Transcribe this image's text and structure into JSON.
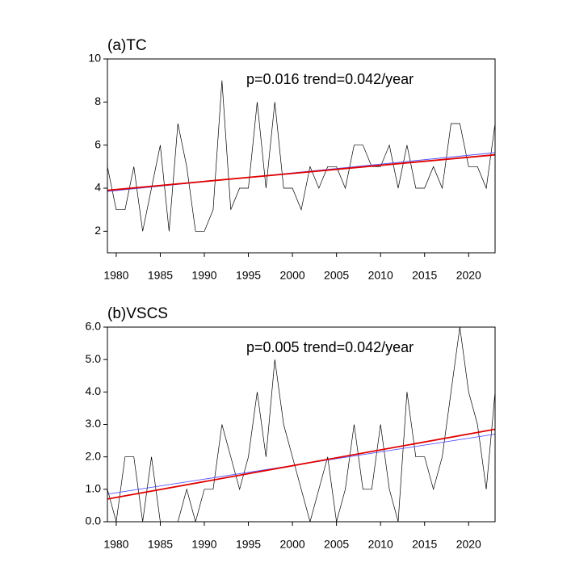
{
  "chart_data": [
    {
      "type": "line",
      "title": "(a)TC",
      "annotation": "p=0.016  trend=0.042/year",
      "x": [
        1979,
        1980,
        1981,
        1982,
        1983,
        1984,
        1985,
        1986,
        1987,
        1988,
        1989,
        1990,
        1991,
        1992,
        1993,
        1994,
        1995,
        1996,
        1997,
        1998,
        1999,
        2000,
        2001,
        2002,
        2003,
        2004,
        2005,
        2006,
        2007,
        2008,
        2009,
        2010,
        2011,
        2012,
        2013,
        2014,
        2015,
        2016,
        2017,
        2018,
        2019,
        2020,
        2021,
        2022,
        2023
      ],
      "series": [
        {
          "color": "#000000",
          "values": [
            5,
            3,
            3,
            5,
            2,
            4,
            6,
            2,
            7,
            5,
            2,
            2,
            3,
            9,
            3,
            4,
            4,
            8,
            4,
            8,
            4,
            4,
            3,
            5,
            4,
            5,
            5,
            4,
            6,
            6,
            5,
            5,
            6,
            4,
            6,
            4,
            4,
            5,
            4,
            7,
            7,
            5,
            5,
            4,
            7
          ]
        }
      ],
      "fits": [
        {
          "color": "#5555ff",
          "x": [
            1979,
            2023
          ],
          "values": [
            3.85,
            5.65
          ]
        },
        {
          "color": "#e00000",
          "x": [
            1979,
            2023
          ],
          "values": [
            3.9,
            5.55
          ]
        }
      ],
      "xlim": [
        1979,
        2023
      ],
      "xticks": [
        1980,
        1985,
        1990,
        1995,
        2000,
        2005,
        2010,
        2015,
        2020
      ],
      "ylim": [
        1,
        10
      ],
      "yticks": [
        2,
        4,
        6,
        8,
        10
      ]
    },
    {
      "type": "line",
      "title": "(b)VSCS",
      "annotation": "p=0.005  trend=0.042/year",
      "x": [
        1979,
        1980,
        1981,
        1982,
        1983,
        1984,
        1985,
        1986,
        1987,
        1988,
        1989,
        1990,
        1991,
        1992,
        1993,
        1994,
        1995,
        1996,
        1997,
        1998,
        1999,
        2000,
        2001,
        2002,
        2003,
        2004,
        2005,
        2006,
        2007,
        2008,
        2009,
        2010,
        2011,
        2012,
        2013,
        2014,
        2015,
        2016,
        2017,
        2018,
        2019,
        2020,
        2021,
        2022,
        2023
      ],
      "series": [
        {
          "color": "#000000",
          "values": [
            1,
            0,
            2,
            2,
            0,
            2,
            0,
            0,
            0,
            1,
            0,
            1,
            1,
            3,
            2,
            1,
            2,
            4,
            2,
            5,
            3,
            2,
            1,
            0,
            1,
            2,
            0,
            1,
            3,
            1,
            1,
            3,
            1,
            0,
            4,
            2,
            2,
            1,
            2,
            4,
            6,
            4,
            3,
            1,
            4
          ]
        }
      ],
      "fits": [
        {
          "color": "#5555ff",
          "x": [
            1979,
            2023
          ],
          "values": [
            0.85,
            2.7
          ]
        },
        {
          "color": "#e00000",
          "x": [
            1979,
            2023
          ],
          "values": [
            0.7,
            2.85
          ]
        }
      ],
      "xlim": [
        1979,
        2023
      ],
      "xticks": [
        1980,
        1985,
        1990,
        1995,
        2000,
        2005,
        2010,
        2015,
        2020
      ],
      "ylim": [
        0,
        6
      ],
      "yticks": [
        {
          "value": 0,
          "label": "0.0"
        },
        {
          "value": 1,
          "label": "1.0"
        },
        {
          "value": 2,
          "label": "2.0"
        },
        {
          "value": 3,
          "label": "3.0"
        },
        {
          "value": 4,
          "label": "4.0"
        },
        {
          "value": 5,
          "label": "5.0"
        },
        {
          "value": 6,
          "label": "6.0"
        }
      ]
    }
  ]
}
